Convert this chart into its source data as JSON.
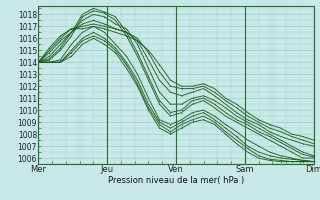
{
  "background_color": "#c8e8e8",
  "grid_color": "#a8cece",
  "line_color": "#1a5c1a",
  "ylabel_values": [
    1006,
    1007,
    1008,
    1009,
    1010,
    1011,
    1012,
    1013,
    1014,
    1015,
    1016,
    1017,
    1018
  ],
  "xtick_labels": [
    "Mer",
    "Jeu",
    "Ven",
    "Sam",
    "Dim"
  ],
  "xlabel": "Pression niveau de la mer( hPa )",
  "ylim": [
    1005.5,
    1018.7
  ],
  "xlim": [
    0,
    100
  ],
  "day_positions": [
    0,
    25,
    50,
    75,
    100
  ],
  "series": [
    [
      1014.0,
      1014.2,
      1015.0,
      1016.2,
      1017.8,
      1018.3,
      1018.1,
      1017.5,
      1016.2,
      1014.5,
      1012.5,
      1010.5,
      1009.5,
      1009.8,
      1010.5,
      1010.8,
      1010.2,
      1009.5,
      1009.0,
      1008.5,
      1008.0,
      1007.5,
      1007.0,
      1006.5,
      1006.0,
      1006.0
    ],
    [
      1014.0,
      1014.3,
      1015.2,
      1016.5,
      1018.0,
      1018.5,
      1018.2,
      1017.8,
      1016.5,
      1014.8,
      1012.8,
      1010.8,
      1009.8,
      1010.0,
      1010.8,
      1011.0,
      1010.5,
      1009.8,
      1009.2,
      1008.8,
      1008.2,
      1007.8,
      1007.3,
      1006.8,
      1006.3,
      1006.1
    ],
    [
      1014.0,
      1014.5,
      1015.5,
      1016.5,
      1017.5,
      1018.0,
      1017.8,
      1017.2,
      1016.8,
      1015.5,
      1013.5,
      1011.5,
      1010.5,
      1010.5,
      1011.0,
      1011.2,
      1010.8,
      1010.2,
      1009.5,
      1009.0,
      1008.5,
      1008.0,
      1007.5,
      1007.0,
      1006.5,
      1006.2
    ],
    [
      1014.0,
      1014.8,
      1015.8,
      1016.5,
      1017.2,
      1017.5,
      1017.2,
      1016.8,
      1016.5,
      1015.8,
      1014.2,
      1012.5,
      1011.5,
      1011.2,
      1011.5,
      1011.8,
      1011.2,
      1010.5,
      1009.8,
      1009.2,
      1008.8,
      1008.2,
      1007.8,
      1007.5,
      1007.2,
      1007.0
    ],
    [
      1014.0,
      1015.0,
      1016.0,
      1016.8,
      1017.0,
      1017.2,
      1017.0,
      1016.8,
      1016.5,
      1016.0,
      1014.8,
      1013.2,
      1012.0,
      1011.8,
      1011.8,
      1012.0,
      1011.5,
      1010.8,
      1010.2,
      1009.5,
      1009.0,
      1008.5,
      1008.2,
      1007.8,
      1007.5,
      1007.2
    ],
    [
      1014.0,
      1015.2,
      1016.2,
      1016.8,
      1016.8,
      1017.0,
      1016.8,
      1016.5,
      1016.2,
      1015.8,
      1015.0,
      1013.8,
      1012.5,
      1012.0,
      1012.0,
      1012.2,
      1011.8,
      1011.0,
      1010.5,
      1009.8,
      1009.2,
      1008.8,
      1008.5,
      1008.0,
      1007.8,
      1007.5
    ],
    [
      1014.0,
      1014.0,
      1014.2,
      1015.5,
      1016.5,
      1017.0,
      1016.5,
      1015.5,
      1014.5,
      1013.0,
      1011.0,
      1009.2,
      1008.8,
      1009.2,
      1009.8,
      1010.0,
      1009.5,
      1008.8,
      1008.2,
      1007.5,
      1007.0,
      1006.5,
      1006.2,
      1006.0,
      1005.8,
      1005.7
    ],
    [
      1014.0,
      1014.0,
      1014.0,
      1015.0,
      1016.0,
      1016.5,
      1016.0,
      1015.2,
      1014.0,
      1012.5,
      1010.5,
      1009.0,
      1008.5,
      1009.0,
      1009.5,
      1009.8,
      1009.2,
      1008.5,
      1007.8,
      1007.0,
      1006.5,
      1006.2,
      1006.0,
      1005.9,
      1005.8,
      1005.7
    ],
    [
      1014.0,
      1014.0,
      1014.0,
      1014.8,
      1015.8,
      1016.2,
      1015.8,
      1015.0,
      1013.8,
      1012.2,
      1010.2,
      1008.8,
      1008.2,
      1008.8,
      1009.2,
      1009.5,
      1009.0,
      1008.2,
      1007.5,
      1006.8,
      1006.2,
      1005.9,
      1005.8,
      1005.7,
      1005.7,
      1005.7
    ],
    [
      1014.0,
      1014.0,
      1014.0,
      1014.5,
      1015.5,
      1016.0,
      1015.5,
      1014.8,
      1013.5,
      1012.0,
      1010.0,
      1008.5,
      1008.0,
      1008.5,
      1009.0,
      1009.2,
      1008.8,
      1008.0,
      1007.2,
      1006.5,
      1006.0,
      1005.8,
      1005.7,
      1005.7,
      1005.7,
      1005.7
    ]
  ]
}
